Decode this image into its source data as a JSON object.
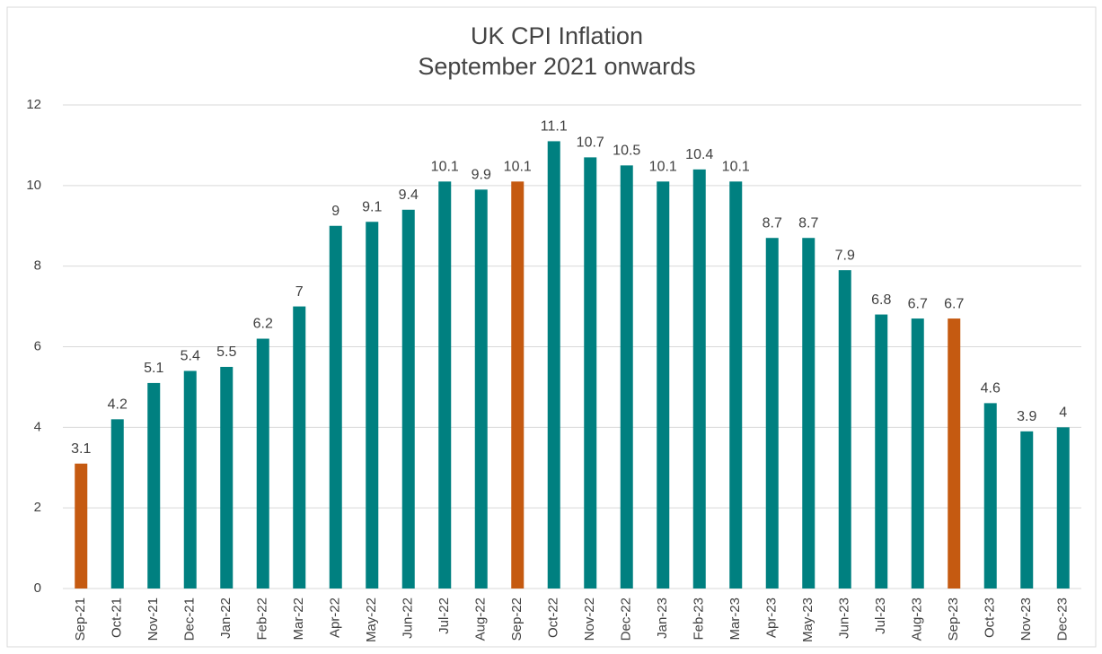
{
  "chart_data": {
    "type": "bar",
    "title": "UK CPI Inflation",
    "subtitle": "September 2021 onwards",
    "categories": [
      "Sep-21",
      "Oct-21",
      "Nov-21",
      "Dec-21",
      "Jan-22",
      "Feb-22",
      "Mar-22",
      "Apr-22",
      "May-22",
      "Jun-22",
      "Jul-22",
      "Aug-22",
      "Sep-22",
      "Oct-22",
      "Nov-22",
      "Dec-22",
      "Jan-23",
      "Feb-23",
      "Mar-23",
      "Apr-23",
      "May-23",
      "Jun-23",
      "Jul-23",
      "Aug-23",
      "Sep-23",
      "Oct-23",
      "Nov-23",
      "Dec-23"
    ],
    "values": [
      3.1,
      4.2,
      5.1,
      5.4,
      5.5,
      6.2,
      7,
      9,
      9.1,
      9.4,
      10.1,
      9.9,
      10.1,
      11.1,
      10.7,
      10.5,
      10.1,
      10.4,
      10.1,
      8.7,
      8.7,
      7.9,
      6.8,
      6.7,
      6.7,
      4.6,
      3.9,
      4
    ],
    "colors": [
      "#c55a11",
      "#008080",
      "#008080",
      "#008080",
      "#008080",
      "#008080",
      "#008080",
      "#008080",
      "#008080",
      "#008080",
      "#008080",
      "#008080",
      "#c55a11",
      "#008080",
      "#008080",
      "#008080",
      "#008080",
      "#008080",
      "#008080",
      "#008080",
      "#008080",
      "#008080",
      "#008080",
      "#008080",
      "#c55a11",
      "#008080",
      "#008080",
      "#008080"
    ],
    "ylim": [
      0,
      12
    ],
    "yticks": [
      0,
      2,
      4,
      6,
      8,
      10,
      12
    ],
    "grid": true
  }
}
